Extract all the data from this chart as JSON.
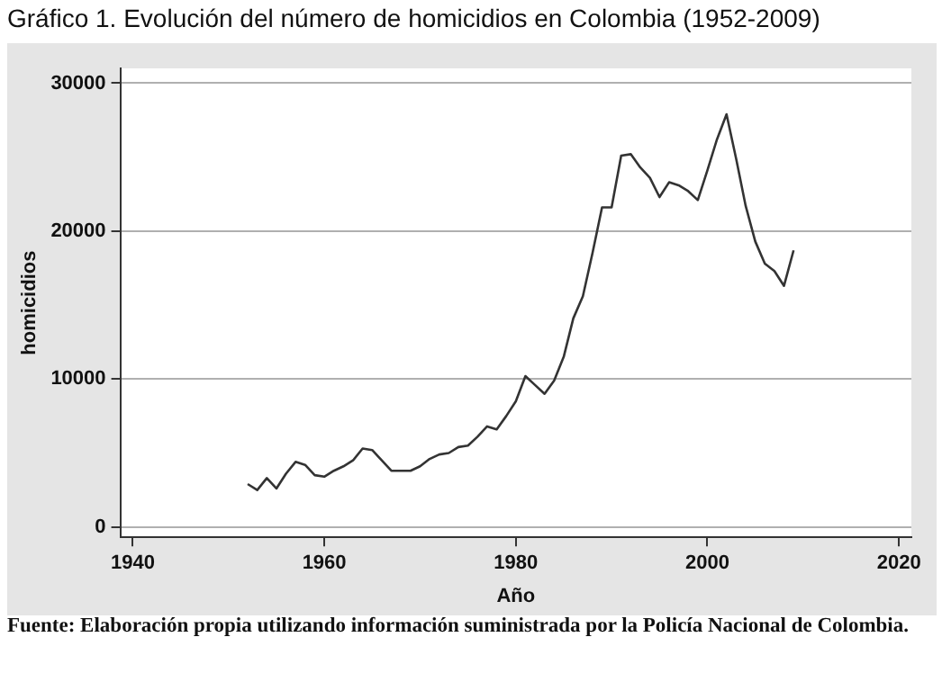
{
  "chart_data": {
    "type": "line",
    "title": "Gráfico 1. Evolución del número de homicidios en Colombia (1952-2009)",
    "xlabel": "Año",
    "ylabel": "homicidios",
    "x": [
      1952,
      1953,
      1954,
      1955,
      1956,
      1957,
      1958,
      1959,
      1960,
      1961,
      1962,
      1963,
      1964,
      1965,
      1966,
      1967,
      1968,
      1969,
      1970,
      1971,
      1972,
      1973,
      1974,
      1975,
      1976,
      1977,
      1978,
      1979,
      1980,
      1981,
      1982,
      1983,
      1984,
      1985,
      1986,
      1987,
      1988,
      1989,
      1990,
      1991,
      1992,
      1993,
      1994,
      1995,
      1996,
      1997,
      1998,
      1999,
      2000,
      2001,
      2002,
      2003,
      2004,
      2005,
      2006,
      2007,
      2008,
      2009
    ],
    "series": [
      {
        "color": "#333333",
        "values": [
          2900,
          2500,
          3300,
          2600,
          3600,
          4400,
          4200,
          3500,
          3400,
          3800,
          4100,
          4500,
          5300,
          5200,
          4500,
          3800,
          3800,
          3800,
          4100,
          4600,
          4900,
          5000,
          5400,
          5500,
          6100,
          6800,
          6600,
          7500,
          8500,
          10200,
          9600,
          9000,
          9900,
          11500,
          14100,
          15600,
          18500,
          21600,
          21600,
          25100,
          25200,
          24300,
          23600,
          22300,
          23300,
          23100,
          22700,
          22100,
          24100,
          26200,
          27900,
          24900,
          21700,
          19300,
          17800,
          17300,
          16300,
          18700
        ]
      }
    ],
    "xlim": [
      1938.7,
      2021.3
    ],
    "xticks": [
      1940,
      1960,
      1980,
      2000,
      2020
    ],
    "ylim": [
      -700,
      31000
    ],
    "yticks": [
      0,
      10000,
      20000,
      30000
    ],
    "grid": "y",
    "legend": false,
    "marker": "none",
    "line_style": "solid",
    "annotations": [
      "Fuente: Elaboración propia utilizando información suministrada por la Policía Nacional de Colombia."
    ]
  }
}
